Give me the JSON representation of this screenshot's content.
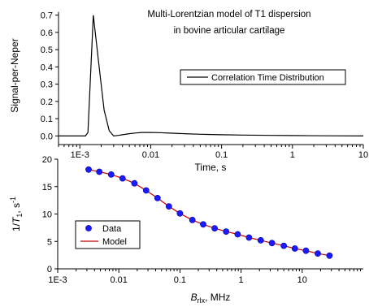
{
  "chart_data": [
    {
      "type": "line",
      "title": "Multi-Lorentzian model of T1 dispersion",
      "subtitle": "in bovine articular cartilage",
      "xlabel": "Time, s",
      "ylabel": "Signal-per-Neper",
      "xscale": "log",
      "xlim": [
        0.0005,
        10
      ],
      "ylim": [
        -0.05,
        0.75
      ],
      "xticks": [
        0.001,
        0.01,
        0.1,
        1,
        10
      ],
      "xtick_labels": [
        "1E-3",
        "0.01",
        "0.1",
        "1",
        "10"
      ],
      "yticks": [
        0.0,
        0.1,
        0.2,
        0.3,
        0.4,
        0.5,
        0.6,
        0.7
      ],
      "ytick_labels": [
        "0.0",
        "0.1",
        "0.2",
        "0.3",
        "0.4",
        "0.5",
        "0.6",
        "0.7"
      ],
      "legend_position": "top-right",
      "series": [
        {
          "name": "Correlation Time Distribution",
          "color": "#000000",
          "x": [
            0.0005,
            0.0012,
            0.0013,
            0.00155,
            0.00185,
            0.0022,
            0.0026,
            0.003,
            0.0035,
            0.004,
            0.005,
            0.006,
            0.0075,
            0.01,
            0.013,
            0.02,
            0.03,
            0.05,
            0.1,
            0.2,
            0.5,
            1,
            3,
            10
          ],
          "y": [
            0.0,
            0.0,
            0.02,
            0.7,
            0.42,
            0.15,
            0.03,
            0.0,
            0.003,
            0.007,
            0.013,
            0.017,
            0.02,
            0.02,
            0.019,
            0.016,
            0.013,
            0.01,
            0.007,
            0.005,
            0.003,
            0.002,
            0.001,
            0.0
          ]
        }
      ]
    },
    {
      "type": "scatter",
      "title": "",
      "xlabel_base": "B",
      "xlabel_sub": "rlx",
      "xlabel_rest": ", MHz",
      "ylabel_pre": "1/",
      "ylabel_var": "T",
      "ylabel_sub": "1",
      "ylabel_post": ", s",
      "ylabel_sup": "-1",
      "xscale": "log",
      "xlim": [
        0.001,
        100
      ],
      "ylim": [
        0,
        20
      ],
      "xticks": [
        0.001,
        0.01,
        0.1,
        1,
        10
      ],
      "xtick_labels": [
        "1E-3",
        "0.01",
        "0.1",
        "1",
        "10"
      ],
      "yticks": [
        0,
        5,
        10,
        15,
        20
      ],
      "ytick_labels": [
        "0",
        "5",
        "10",
        "15",
        "20"
      ],
      "legend_position": "bottom-left",
      "series": [
        {
          "name": "Data",
          "kind": "markers",
          "color": "#1a1aff",
          "x": [
            0.0032,
            0.0048,
            0.0075,
            0.0115,
            0.018,
            0.028,
            0.043,
            0.066,
            0.1,
            0.16,
            0.24,
            0.37,
            0.57,
            0.88,
            1.35,
            2.1,
            3.2,
            5.0,
            7.6,
            11.5,
            18,
            28
          ],
          "y": [
            18.1,
            17.7,
            17.2,
            16.5,
            15.6,
            14.3,
            12.9,
            11.4,
            10.1,
            8.9,
            8.1,
            7.4,
            6.8,
            6.3,
            5.7,
            5.2,
            4.7,
            4.2,
            3.7,
            3.3,
            2.8,
            2.4
          ]
        },
        {
          "name": "Model",
          "kind": "line",
          "color": "#cc0000",
          "x": [
            0.0032,
            0.0048,
            0.0075,
            0.0115,
            0.018,
            0.028,
            0.043,
            0.066,
            0.1,
            0.16,
            0.24,
            0.37,
            0.57,
            0.88,
            1.35,
            2.1,
            3.2,
            5.0,
            7.6,
            11.5,
            18,
            28
          ],
          "y": [
            18.1,
            17.7,
            17.2,
            16.5,
            15.6,
            14.3,
            12.9,
            11.4,
            10.1,
            8.9,
            8.1,
            7.4,
            6.8,
            6.3,
            5.7,
            5.2,
            4.7,
            4.2,
            3.7,
            3.3,
            2.8,
            2.4
          ]
        }
      ]
    }
  ]
}
